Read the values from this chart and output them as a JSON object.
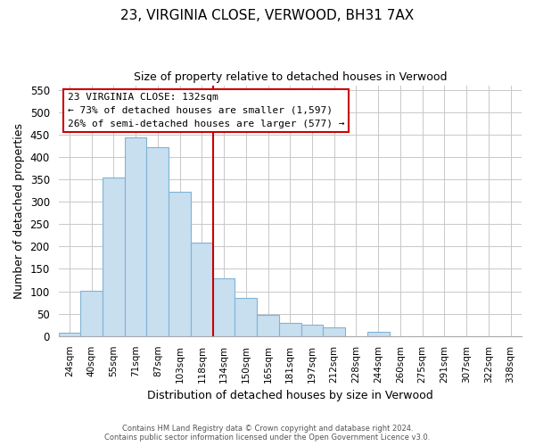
{
  "title": "23, VIRGINIA CLOSE, VERWOOD, BH31 7AX",
  "subtitle": "Size of property relative to detached houses in Verwood",
  "xlabel": "Distribution of detached houses by size in Verwood",
  "ylabel": "Number of detached properties",
  "categories": [
    "24sqm",
    "40sqm",
    "55sqm",
    "71sqm",
    "87sqm",
    "103sqm",
    "118sqm",
    "134sqm",
    "150sqm",
    "165sqm",
    "181sqm",
    "197sqm",
    "212sqm",
    "228sqm",
    "244sqm",
    "260sqm",
    "275sqm",
    "291sqm",
    "307sqm",
    "322sqm",
    "338sqm"
  ],
  "values": [
    7,
    101,
    354,
    444,
    421,
    323,
    209,
    129,
    85,
    48,
    29,
    25,
    20,
    0,
    9,
    0,
    0,
    0,
    0,
    0,
    0
  ],
  "bar_color": "#c8dff0",
  "bar_edge_color": "#7fb4d4",
  "marker_line_color": "#cc0000",
  "annotation_line1": "23 VIRGINIA CLOSE: 132sqm",
  "annotation_line2": "← 73% of detached houses are smaller (1,597)",
  "annotation_line3": "26% of semi-detached houses are larger (577) →",
  "ylim": [
    0,
    560
  ],
  "yticks": [
    0,
    50,
    100,
    150,
    200,
    250,
    300,
    350,
    400,
    450,
    500,
    550
  ],
  "footer_line1": "Contains HM Land Registry data © Crown copyright and database right 2024.",
  "footer_line2": "Contains public sector information licensed under the Open Government Licence v3.0.",
  "background_color": "#ffffff",
  "grid_color": "#c8c8c8"
}
